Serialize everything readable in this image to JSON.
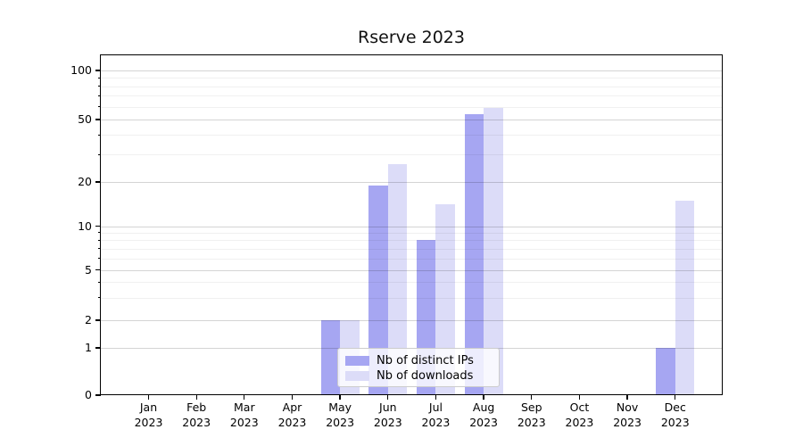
{
  "title": "Rserve 2023",
  "chart_data": {
    "type": "bar",
    "title": "Rserve 2023",
    "categories": [
      "Jan 2023",
      "Feb 2023",
      "Mar 2023",
      "Apr 2023",
      "May 2023",
      "Jun 2023",
      "Jul 2023",
      "Aug 2023",
      "Sep 2023",
      "Oct 2023",
      "Nov 2023",
      "Dec 2023"
    ],
    "month_labels": [
      "Jan",
      "Feb",
      "Mar",
      "Apr",
      "May",
      "Jun",
      "Jul",
      "Aug",
      "Sep",
      "Oct",
      "Nov",
      "Dec"
    ],
    "year_label": "2023",
    "series": [
      {
        "name": "Nb of distinct IPs",
        "color": "#a6a6f2",
        "values": [
          0,
          0,
          0,
          0,
          2,
          19,
          8,
          54,
          0,
          0,
          0,
          1
        ]
      },
      {
        "name": "Nb of downloads",
        "color": "#dcdcf8",
        "values": [
          0,
          0,
          0,
          0,
          2,
          26,
          14,
          59,
          0,
          0,
          0,
          15
        ]
      }
    ],
    "xlabel": "",
    "ylabel": "",
    "y_axis": {
      "scale": "log-like with zero baseline",
      "ticks": [
        0,
        1,
        2,
        5,
        10,
        20,
        50,
        100
      ],
      "tick_labels": [
        "0",
        "1",
        "2",
        "5",
        "10",
        "20",
        "50",
        "100"
      ],
      "minor_ticks": [
        3,
        4,
        6,
        7,
        8,
        9,
        30,
        40,
        60,
        70,
        80,
        90
      ],
      "ylim": [
        0,
        100
      ]
    },
    "grid": "horizontal major and minor gridlines, drawn over bars",
    "legend_position": "inside bottom-center"
  },
  "legend": {
    "entries": [
      {
        "label": "Nb of distinct IPs",
        "color": "#a6a6f2"
      },
      {
        "label": "Nb of downloads",
        "color": "#dcdcf8"
      }
    ]
  },
  "colors": {
    "bar_distinct_ips": "#a6a6f2",
    "bar_downloads": "#dcdcf8",
    "background": "#ffffff",
    "text": "#000000",
    "grid_major": "#d4d4d4",
    "grid_minor": "#f0f0f0"
  }
}
